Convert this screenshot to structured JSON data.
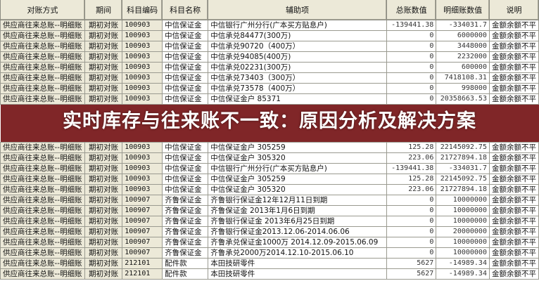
{
  "headers": [
    "对账方式",
    "期间",
    "科目编码",
    "科目名称",
    "辅助项",
    "总账数值",
    "明细账数值",
    "说明"
  ],
  "rows": [
    [
      "供应商往来总账--明细账",
      "期初对账",
      "100903",
      "中信保证金",
      "中信银行广州分行(广本买方贴息户)",
      "-139441.38",
      "-334031.7",
      "金额余额不平"
    ],
    [
      "供应商往来总账--明细账",
      "期初对账",
      "100903",
      "中信保证金",
      "中信承兑84477(300万)",
      "0",
      "6000000",
      "金额余额不平"
    ],
    [
      "供应商往来总账--明细账",
      "期初对账",
      "100903",
      "中信保证金",
      "中信承兑90720（400万）",
      "0",
      "3448000",
      "金额余额不平"
    ],
    [
      "供应商往来总账--明细账",
      "期初对账",
      "100903",
      "中信保证金",
      "中信承兑94085(400万)",
      "0",
      "2232000",
      "金额余额不平"
    ],
    [
      "供应商往来总账--明细账",
      "期初对账",
      "100903",
      "中信保证金",
      "中信承兑02231(300万)",
      "0",
      "600000",
      "金额余额不平"
    ],
    [
      "供应商往来总账--明细账",
      "期初对账",
      "100903",
      "中信保证金",
      "中信承兑73403（300万）",
      "0",
      "7418108.31",
      "金额余额不平"
    ],
    [
      "供应商往来总账--明细账",
      "期初对账",
      "100903",
      "中信保证金",
      "中信承兑73578（400万）",
      "0",
      "998000",
      "金额余额不平"
    ],
    [
      "供应商往来总账--明细账",
      "期初对账",
      "100903",
      "中信保证金",
      "中信保证金户 85371",
      "0",
      "20358663.53",
      "金额余额不平"
    ],
    [
      "供应商往来总账--明细账",
      "期初对账",
      "100903",
      "中信保证金",
      "中信保证金户 305259",
      "125.28",
      "22145092.75",
      "金额余额不平"
    ],
    [
      "供应商往来总账--明细账",
      "期初对账",
      "100903",
      "中信保证金",
      "中信保证金户 305320",
      "223.06",
      "21727894.18",
      "金额余额不平"
    ],
    [
      "供应商往来总账--明细账",
      "期初对账",
      "100903",
      "中信保证金",
      "中信银行广州分行(广本买方贴息户)",
      "-139441.38",
      "-334031.7",
      "金额余额不平"
    ],
    [
      "供应商往来总账--明细账",
      "期初对账",
      "100903",
      "中信保证金",
      "中信保证金户 305259",
      "125.28",
      "22145092.75",
      "金额余额不平"
    ],
    [
      "供应商往来总账--明细账",
      "期初对账",
      "100903",
      "中信保证金",
      "中信保证金户 305320",
      "223.06",
      "21727894.18",
      "金额余额不平"
    ],
    [
      "供应商往来总账--明细账",
      "期初对账",
      "100907",
      "齐鲁保证金",
      "齐鲁银行保证金12年12月11日到期",
      "0",
      "10000000",
      "金额余额不平"
    ],
    [
      "供应商往来总账--明细账",
      "期初对账",
      "100907",
      "齐鲁保证金",
      "齐鲁保证金 2013年1月6日到期",
      "0",
      "10000000",
      "金额余额不平"
    ],
    [
      "供应商往来总账--明细账",
      "期初对账",
      "100907",
      "齐鲁保证金",
      "齐鲁银行保证金 2013年6月25日到期",
      "0",
      "10000000",
      "金额余额不平"
    ],
    [
      "供应商往来总账--明细账",
      "期初对账",
      "100907",
      "齐鲁保证金",
      "齐鲁银行保证金2013.12.06-2014.06.06",
      "0",
      "20000000",
      "金额余额不平"
    ],
    [
      "供应商往来总账--明细账",
      "期初对账",
      "100907",
      "齐鲁保证金",
      "齐鲁承兑保证金1000万 2014.12.09-2015.06.09",
      "0",
      "10000000",
      "金额余额不平"
    ],
    [
      "供应商往来总账--明细账",
      "期初对账",
      "100907",
      "齐鲁保证金",
      "齐鲁承兑2000万2014.12.10-2015.06.10",
      "0",
      "10000000",
      "金额余额不平"
    ],
    [
      "供应商往来总账--明细账",
      "期初对账",
      "212101",
      "配件款",
      "本田技研零件",
      "5627",
      "-14989.34",
      "金额余额不平"
    ],
    [
      "供应商往来总账--明细账",
      "期初对账",
      "212101",
      "配件款",
      "本田技研零件",
      "5627",
      "-14989.34",
      "金额余额不平"
    ]
  ],
  "banner": {
    "title": "实时库存与往来账不一致：原因分析及解决方案",
    "color": "#802628"
  }
}
